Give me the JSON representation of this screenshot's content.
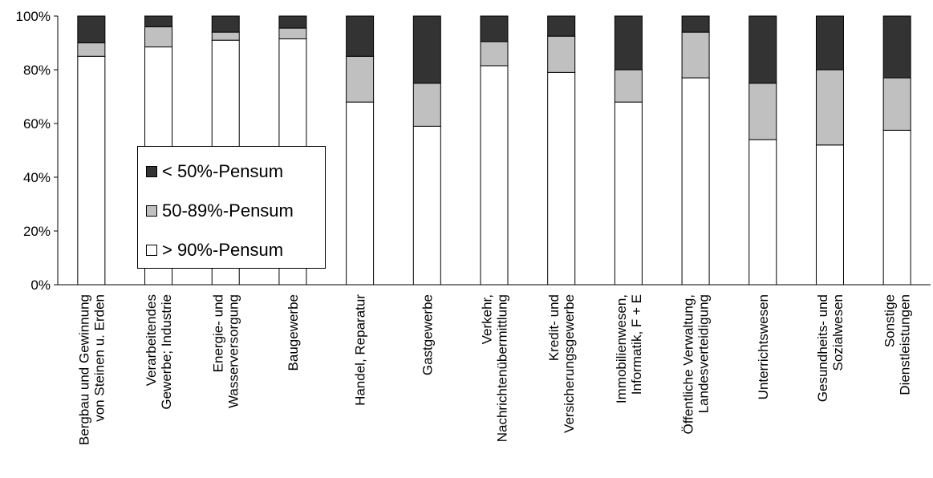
{
  "chart_data": {
    "type": "bar",
    "stacked": true,
    "percent": true,
    "title": "",
    "xlabel": "",
    "ylabel": "",
    "ylim": [
      0,
      100
    ],
    "yticks": [
      "0%",
      "20%",
      "40%",
      "60%",
      "80%",
      "100%"
    ],
    "grid": false,
    "legend_position": "left, inside plot",
    "categories": [
      [
        "Bergbau und Gewinnung",
        "von Steinen u. Erden"
      ],
      [
        "Verarbeitendes",
        "Gewerbe; Industrie"
      ],
      [
        "Energie- und",
        "Wasserversorgung"
      ],
      [
        "Baugewerbe"
      ],
      [
        "Handel, Reparatur"
      ],
      [
        "Gastgewerbe"
      ],
      [
        "Verkehr,",
        "Nachrichtenübermittlung"
      ],
      [
        "Kredit- und",
        "Versicherungsgewerbe"
      ],
      [
        "Immobilienwesen,",
        "Informatik, F + E"
      ],
      [
        "Öffentliche Verwaltung,",
        "Landesverteidigung"
      ],
      [
        "Unterrichtswesen"
      ],
      [
        "Gesundheits- und",
        "Sozialwesen"
      ],
      [
        "Sonstige",
        "Dienstleistungen"
      ]
    ],
    "series": [
      {
        "name": "> 90%-Pensum",
        "color": "#ffffff",
        "values": [
          85,
          88.5,
          91,
          91.5,
          68,
          59,
          81.5,
          79,
          68,
          77,
          54,
          52,
          57.5
        ]
      },
      {
        "name": "50-89%-Pensum",
        "color": "#c0c0c0",
        "values": [
          5,
          7.5,
          3,
          4,
          17,
          16,
          9,
          13.5,
          12,
          17,
          21,
          28,
          19.5
        ]
      },
      {
        "name": "< 50%-Pensum",
        "color": "#333333",
        "values": [
          10,
          4,
          6,
          4.5,
          15,
          25,
          9.5,
          7.5,
          20,
          6,
          25,
          20,
          23
        ]
      }
    ]
  },
  "legend": {
    "items": [
      {
        "label": "< 50%-Pensum",
        "color": "#333333"
      },
      {
        "label": "50-89%-Pensum",
        "color": "#c0c0c0"
      },
      {
        "label": "> 90%-Pensum",
        "color": "#ffffff"
      }
    ]
  }
}
